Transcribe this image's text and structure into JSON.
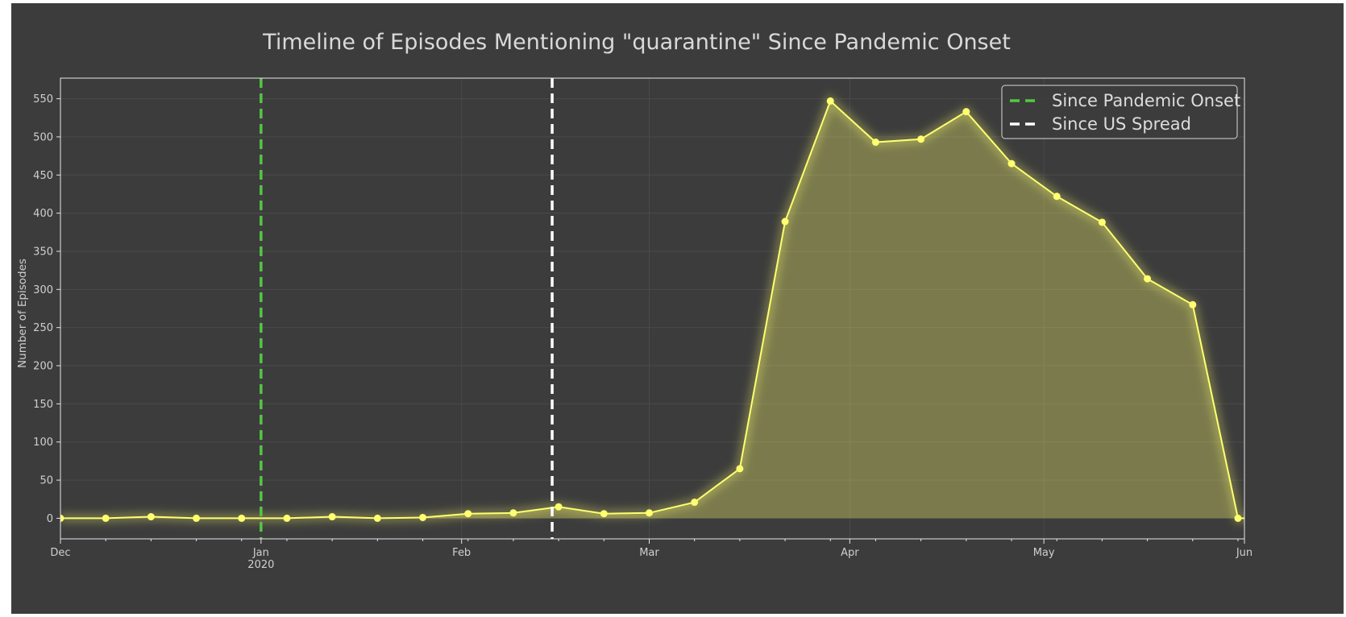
{
  "chart_data": {
    "type": "line",
    "title": "Timeline of Episodes Mentioning \"quarantine\" Since Pandemic Onset",
    "xlabel": "",
    "ylabel": "Number of Episodes",
    "x_axis_kind": "date",
    "xlim": [
      "2019-12-01",
      "2020-06-01"
    ],
    "ylim": [
      -27,
      577
    ],
    "y_ticks": [
      0,
      50,
      100,
      150,
      200,
      250,
      300,
      350,
      400,
      450,
      500,
      550
    ],
    "x_ticks": [
      {
        "date": "2019-12-01",
        "label": "Dec",
        "sublabel": ""
      },
      {
        "date": "2020-01-01",
        "label": "Jan",
        "sublabel": "2020"
      },
      {
        "date": "2020-02-01",
        "label": "Feb",
        "sublabel": ""
      },
      {
        "date": "2020-03-01",
        "label": "Mar",
        "sublabel": ""
      },
      {
        "date": "2020-04-01",
        "label": "Apr",
        "sublabel": ""
      },
      {
        "date": "2020-05-01",
        "label": "May",
        "sublabel": ""
      },
      {
        "date": "2020-06-01",
        "label": "Jun",
        "sublabel": ""
      }
    ],
    "grid": true,
    "legend_position": "top-right",
    "series": [
      {
        "color": "#ffff70",
        "fill": true,
        "points": [
          {
            "x": "2019-12-01",
            "y": 0
          },
          {
            "x": "2019-12-08",
            "y": 0
          },
          {
            "x": "2019-12-15",
            "y": 2
          },
          {
            "x": "2019-12-22",
            "y": 0
          },
          {
            "x": "2019-12-29",
            "y": 0
          },
          {
            "x": "2020-01-05",
            "y": 0
          },
          {
            "x": "2020-01-12",
            "y": 2
          },
          {
            "x": "2020-01-19",
            "y": 0
          },
          {
            "x": "2020-01-26",
            "y": 1
          },
          {
            "x": "2020-02-02",
            "y": 6
          },
          {
            "x": "2020-02-09",
            "y": 7
          },
          {
            "x": "2020-02-16",
            "y": 15
          },
          {
            "x": "2020-02-23",
            "y": 6
          },
          {
            "x": "2020-03-01",
            "y": 7
          },
          {
            "x": "2020-03-08",
            "y": 21
          },
          {
            "x": "2020-03-15",
            "y": 65
          },
          {
            "x": "2020-03-22",
            "y": 389
          },
          {
            "x": "2020-03-29",
            "y": 547
          },
          {
            "x": "2020-04-05",
            "y": 493
          },
          {
            "x": "2020-04-12",
            "y": 497
          },
          {
            "x": "2020-04-19",
            "y": 533
          },
          {
            "x": "2020-04-26",
            "y": 465
          },
          {
            "x": "2020-05-03",
            "y": 422
          },
          {
            "x": "2020-05-10",
            "y": 388
          },
          {
            "x": "2020-05-17",
            "y": 314
          },
          {
            "x": "2020-05-24",
            "y": 280
          },
          {
            "x": "2020-05-31",
            "y": 0
          },
          {
            "x": "2020-06-07",
            "y": 0
          }
        ]
      }
    ],
    "vlines": [
      {
        "label": "Since Pandemic Onset",
        "date": "2020-01-01",
        "color": "#55c545"
      },
      {
        "label": "Since US Spread",
        "date": "2020-02-15",
        "color": "#ffffff"
      }
    ],
    "colors": {
      "background": "#3c3c3c",
      "grid": "#4a4a4a",
      "axis": "#e6e6e6",
      "text": "#cfcfcf"
    }
  }
}
